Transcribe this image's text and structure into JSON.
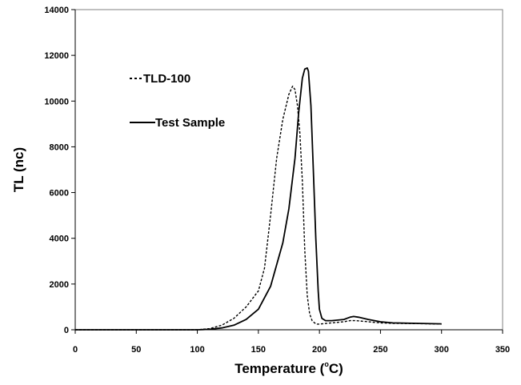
{
  "chart_data": {
    "type": "line",
    "title": "",
    "xlabel": "Temperature (",
    "xlabel_degree": "o",
    "xlabel_unit": "C)",
    "ylabel": "TL (nc)",
    "xlim": [
      0,
      350
    ],
    "ylim": [
      0,
      14000
    ],
    "x_ticks": [
      0,
      50,
      100,
      150,
      200,
      250,
      300,
      350
    ],
    "y_ticks": [
      0,
      2000,
      4000,
      6000,
      8000,
      10000,
      12000,
      14000
    ],
    "grid": false,
    "legend_position": "upper-left",
    "series": [
      {
        "name": "TLD-100",
        "line_style": "dashed",
        "color": "#000000",
        "x": [
          0,
          100,
          110,
          120,
          130,
          140,
          150,
          155,
          160,
          165,
          170,
          175,
          178,
          180,
          182,
          184,
          186,
          188,
          190,
          192,
          194,
          196,
          198,
          200,
          210,
          220,
          225,
          230,
          240,
          250,
          260,
          280,
          300
        ],
        "y": [
          0,
          0,
          50,
          200,
          500,
          1000,
          1700,
          2700,
          5000,
          7500,
          9200,
          10300,
          10650,
          10500,
          9800,
          8600,
          6500,
          3500,
          1500,
          700,
          400,
          300,
          250,
          250,
          300,
          350,
          400,
          400,
          350,
          300,
          280,
          270,
          250
        ]
      },
      {
        "name": "Test Sample",
        "line_style": "solid",
        "color": "#000000",
        "x": [
          0,
          100,
          110,
          120,
          130,
          140,
          150,
          160,
          170,
          175,
          180,
          183,
          186,
          188,
          190,
          191,
          193,
          195,
          197,
          199,
          200,
          202,
          205,
          210,
          220,
          225,
          228,
          232,
          240,
          250,
          260,
          280,
          300
        ],
        "y": [
          0,
          0,
          20,
          80,
          200,
          450,
          900,
          1900,
          3800,
          5300,
          7500,
          9500,
          11000,
          11400,
          11450,
          11300,
          9800,
          7000,
          4000,
          1700,
          900,
          500,
          400,
          400,
          450,
          550,
          580,
          550,
          450,
          350,
          300,
          280,
          260
        ]
      }
    ]
  }
}
